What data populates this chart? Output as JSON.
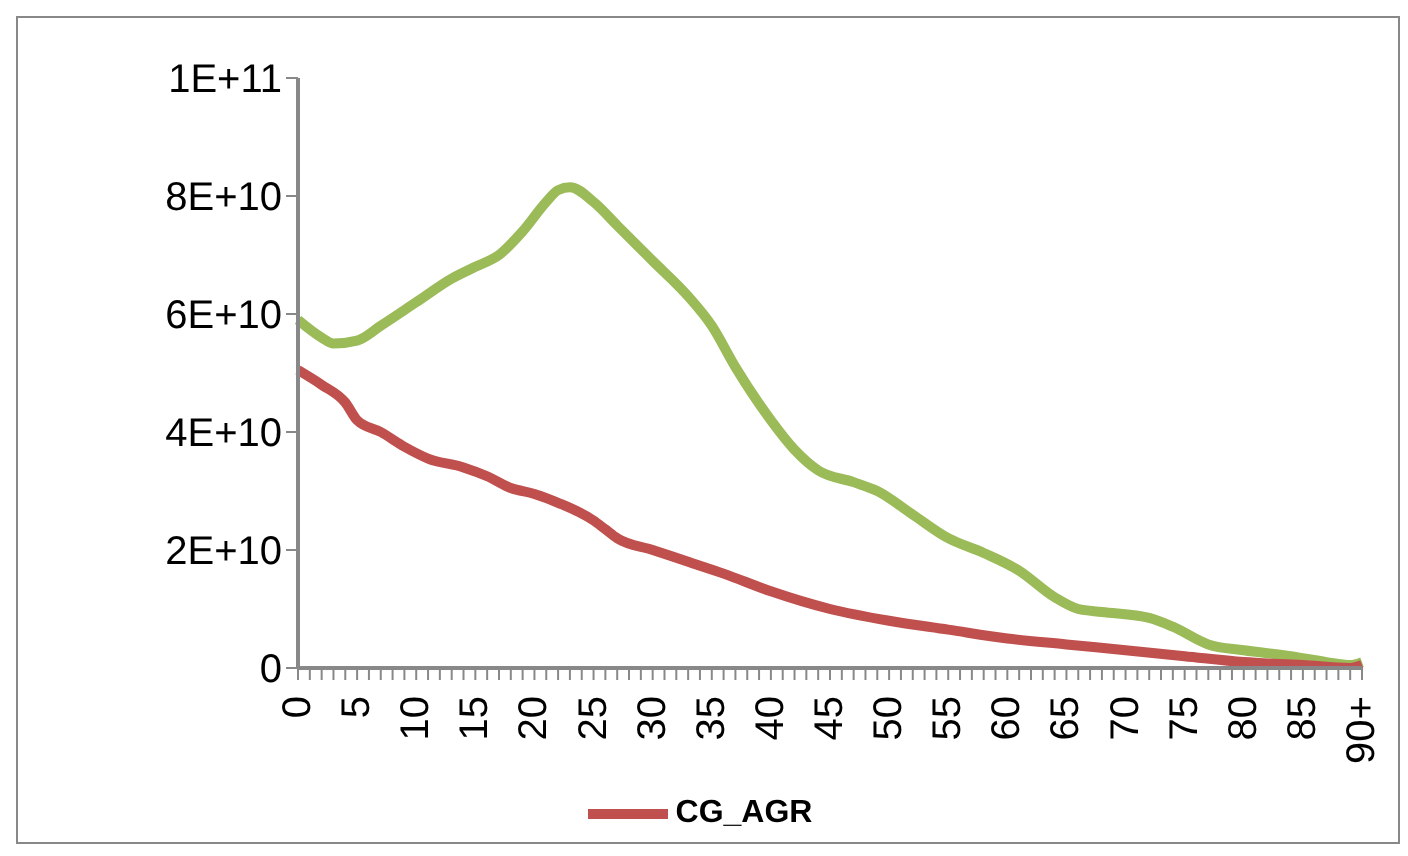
{
  "chart_data": {
    "type": "line",
    "categories": [
      "0",
      null,
      null,
      null,
      null,
      "5",
      null,
      null,
      null,
      null,
      "10",
      null,
      null,
      null,
      null,
      "15",
      null,
      null,
      null,
      null,
      "20",
      null,
      null,
      null,
      null,
      "25",
      null,
      null,
      null,
      null,
      "30",
      null,
      null,
      null,
      null,
      "35",
      null,
      null,
      null,
      null,
      "40",
      null,
      null,
      null,
      null,
      "45",
      null,
      null,
      null,
      null,
      "50",
      null,
      null,
      null,
      null,
      "55",
      null,
      null,
      null,
      null,
      "60",
      null,
      null,
      null,
      null,
      "65",
      null,
      null,
      null,
      null,
      "70",
      null,
      null,
      null,
      null,
      "75",
      null,
      null,
      null,
      null,
      "80",
      null,
      null,
      null,
      null,
      "85",
      null,
      null,
      null,
      null,
      "90+"
    ],
    "series": [
      {
        "color": "#9bbb59",
        "values": [
          59000000000.0,
          null,
          56000000000.0,
          55000000000.0,
          null,
          55500000000.0,
          null,
          58000000000.0,
          null,
          null,
          62000000000.0,
          null,
          null,
          66000000000.0,
          null,
          68000000000.0,
          null,
          70000000000.0,
          null,
          74000000000.0,
          null,
          79000000000.0,
          81000000000.0,
          81500000000.0,
          null,
          79000000000.0,
          null,
          75000000000.0,
          null,
          null,
          69000000000.0,
          null,
          null,
          63000000000.0,
          null,
          58000000000.0,
          null,
          51000000000.0,
          null,
          null,
          42000000000.0,
          null,
          37000000000.0,
          null,
          33500000000.0,
          null,
          null,
          31500000000.0,
          null,
          30000000000.0,
          null,
          null,
          26000000000.0,
          null,
          null,
          22000000000.0,
          null,
          null,
          19500000000.0,
          null,
          null,
          16500000000.0,
          null,
          null,
          12000000000.0,
          null,
          10000000000.0,
          null,
          9500000000.0,
          null,
          null,
          null,
          8500000000.0,
          null,
          7000000000.0,
          null,
          null,
          4000000000.0,
          null,
          null,
          3000000000.0,
          null,
          null,
          null,
          2000000000.0,
          null,
          null,
          1000000000.0,
          null,
          500000000.0,
          1000000000.0
        ]
      },
      {
        "name": "CG_AGR",
        "color": "#c0504d",
        "values": [
          50500000000.0,
          null,
          48000000000.0,
          null,
          45000000000.0,
          42000000000.0,
          null,
          40000000000.0,
          null,
          37500000000.0,
          null,
          35500000000.0,
          null,
          null,
          34000000000.0,
          null,
          32500000000.0,
          null,
          30500000000.0,
          null,
          29500000000.0,
          null,
          28000000000.0,
          null,
          null,
          25000000000.0,
          23500000000.0,
          22000000000.0,
          null,
          null,
          20000000000.0,
          null,
          null,
          18000000000.0,
          null,
          null,
          16000000000.0,
          null,
          null,
          null,
          13000000000.0,
          null,
          null,
          null,
          null,
          10000000000.0,
          null,
          null,
          null,
          null,
          8000000000.0,
          null,
          null,
          null,
          null,
          6500000000.0,
          null,
          null,
          null,
          null,
          5000000000.0,
          null,
          null,
          null,
          null,
          4000000000.0,
          null,
          null,
          null,
          null,
          3000000000.0,
          null,
          null,
          null,
          null,
          2000000000.0,
          null,
          null,
          null,
          null,
          1000000000.0,
          null,
          null,
          null,
          null,
          500000000.0,
          null,
          null,
          null,
          0,
          500000000.0
        ]
      }
    ],
    "ylim": [
      0,
      100000000000.0
    ],
    "yticks": [
      {
        "value": 0,
        "label": "0"
      },
      {
        "value": 20000000000.0,
        "label": "2E+10"
      },
      {
        "value": 40000000000.0,
        "label": "4E+10"
      },
      {
        "value": 60000000000.0,
        "label": "6E+10"
      },
      {
        "value": 80000000000.0,
        "label": "8E+10"
      },
      {
        "value": 100000000000.0,
        "label": "1E+11"
      }
    ],
    "grid": false,
    "legend": "bottom",
    "marker": "none",
    "line_style": "solid"
  }
}
